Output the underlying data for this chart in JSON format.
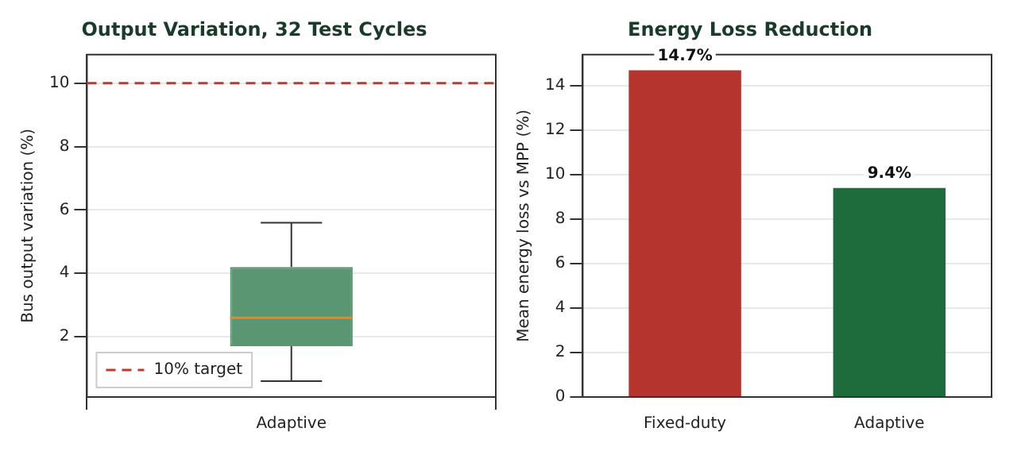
{
  "chart_data": [
    {
      "type": "box",
      "title": "Output Variation, 32 Test Cycles",
      "ylabel": "Bus output variation (%)",
      "categories": [
        "Adaptive"
      ],
      "color": "#5a9672",
      "boxes": [
        {
          "low": 0.6,
          "q1": 1.7,
          "median": 2.6,
          "q3": 4.2,
          "high": 5.6
        }
      ],
      "ylim": [
        0.1,
        10.9
      ],
      "yticks": [
        2,
        4,
        6,
        8,
        10
      ],
      "grid": true,
      "legend": "bottom left",
      "ref_lines": [
        {
          "axis": "y",
          "value": 10,
          "label": "10% target",
          "color": "#c0392b",
          "line_style": "dashed"
        }
      ]
    },
    {
      "type": "bar",
      "title": "Energy Loss Reduction",
      "ylabel": "Mean energy loss vs MPP (%)",
      "categories": [
        "Fixed-duty",
        "Adaptive"
      ],
      "values": [
        14.7,
        9.4
      ],
      "colors": [
        "#b5352e",
        "#1e6b3c"
      ],
      "value_labels": [
        "14.7%",
        "9.4%"
      ],
      "ylim": [
        0,
        15.4
      ],
      "yticks": [
        0,
        2,
        4,
        6,
        8,
        10,
        12,
        14
      ],
      "grid": "y"
    }
  ]
}
